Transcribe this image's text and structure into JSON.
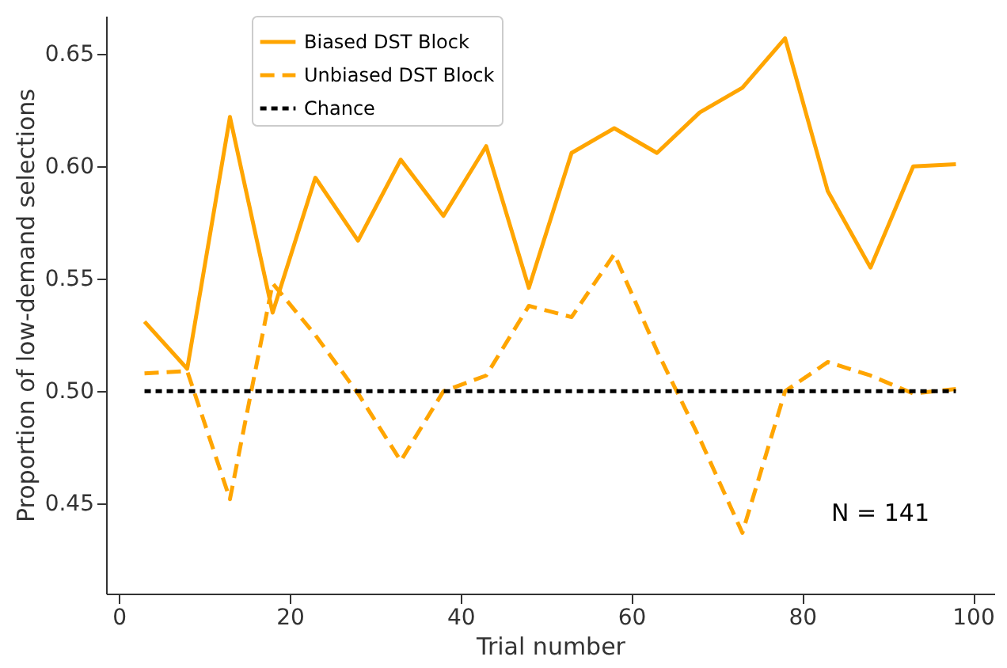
{
  "chart_data": {
    "type": "line",
    "xlabel": "Trial number",
    "ylabel": "Proportion of low-demand selections",
    "x": [
      3,
      8,
      13,
      18,
      23,
      28,
      33,
      38,
      43,
      48,
      53,
      58,
      63,
      68,
      73,
      78,
      83,
      88,
      93,
      98
    ],
    "series": [
      {
        "name": "Biased DST Block",
        "color": "#ffa500",
        "line_style": "solid",
        "values": [
          0.531,
          0.51,
          0.622,
          0.535,
          0.595,
          0.567,
          0.603,
          0.578,
          0.609,
          0.546,
          0.606,
          0.617,
          0.606,
          0.624,
          0.635,
          0.657,
          0.589,
          0.555,
          0.6,
          0.601
        ]
      },
      {
        "name": "Unbiased DST Block",
        "color": "#ffa500",
        "line_style": "dashed",
        "values": [
          0.508,
          0.509,
          0.452,
          0.548,
          0.525,
          0.499,
          0.469,
          0.5,
          0.507,
          0.538,
          0.533,
          0.561,
          0.518,
          0.479,
          0.437,
          0.5,
          0.513,
          0.507,
          0.499,
          0.501
        ]
      },
      {
        "name": "Chance",
        "color": "#000000",
        "line_style": "dotted",
        "x": [
          3,
          98
        ],
        "values": [
          0.5,
          0.5
        ]
      }
    ],
    "xlim": [
      -1.5,
      102.5
    ],
    "xticks": [
      0,
      20,
      40,
      60,
      80,
      100
    ],
    "ylim": [
      0.41,
      0.667
    ],
    "yticks": [
      {
        "value": 0.45,
        "label": "0.45"
      },
      {
        "value": 0.5,
        "label": "0.50"
      },
      {
        "value": 0.55,
        "label": "0.55"
      },
      {
        "value": 0.6,
        "label": "0.60"
      },
      {
        "value": 0.65,
        "label": "0.65"
      }
    ],
    "grid": false,
    "legend": "top left",
    "marker": "none",
    "annotations": [
      "N = 141"
    ]
  }
}
